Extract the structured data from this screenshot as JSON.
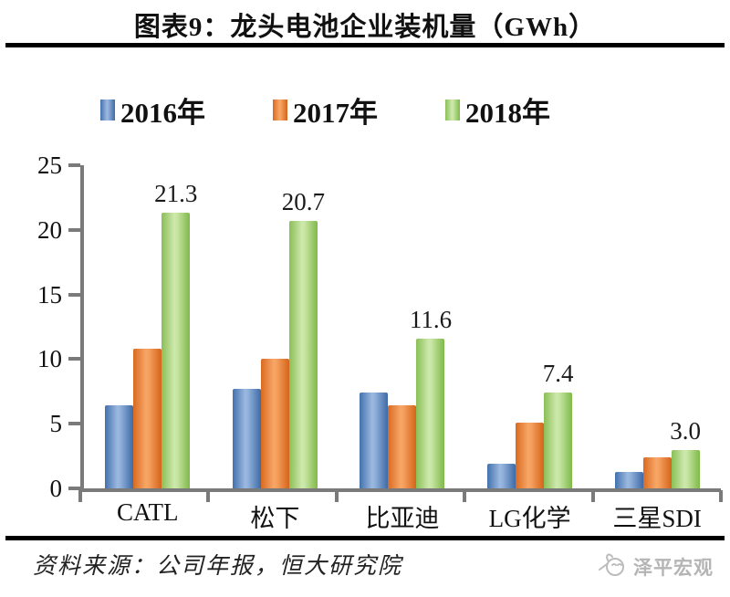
{
  "chart_data": {
    "type": "bar",
    "title": "图表9：龙头电池企业装机量（GWh）",
    "categories": [
      "CATL",
      "松下",
      "比亚迪",
      "LG化学",
      "三星SDI"
    ],
    "series": [
      {
        "name": "2016年",
        "color": "#4f81bd",
        "values": [
          6.4,
          7.7,
          7.4,
          1.9,
          1.3
        ]
      },
      {
        "name": "2017年",
        "color": "#ed7d31",
        "values": [
          10.8,
          10.0,
          6.4,
          5.1,
          2.4
        ]
      },
      {
        "name": "2018年",
        "color": "#9bcb63",
        "values": [
          21.3,
          20.7,
          11.6,
          7.4,
          3.0
        ],
        "data_labels": [
          "21.3",
          "20.7",
          "11.6",
          "7.4",
          "3.0"
        ]
      }
    ],
    "xlabel": "",
    "ylabel": "",
    "ylim": [
      0,
      25
    ],
    "yticks": [
      0,
      5,
      10,
      15,
      20,
      25
    ],
    "legend_position": "top",
    "grid": false,
    "axis_color": "#7a7a7a"
  },
  "source_note": "资料来源：公司年报，恒大研究院",
  "logo": {
    "text": "泽平宏观"
  }
}
